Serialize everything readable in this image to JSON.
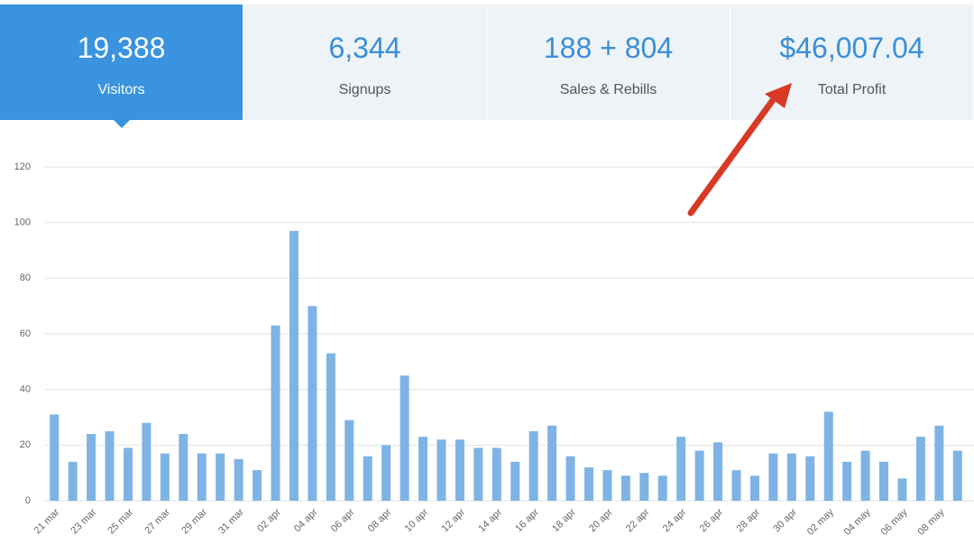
{
  "stats": [
    {
      "value": "19,388",
      "label": "Visitors"
    },
    {
      "value": "6,344",
      "label": "Signups"
    },
    {
      "value": "188 + 804",
      "label": "Sales & Rebills"
    },
    {
      "value": "$46,007.04",
      "label": "Total Profit"
    }
  ],
  "chart_data": {
    "type": "bar",
    "categories": [
      "21 mar",
      null,
      "23 mar",
      null,
      "25 mar",
      null,
      "27 mar",
      null,
      "29 mar",
      null,
      "31 mar",
      null,
      "02 apr",
      null,
      "04 apr",
      null,
      "06 apr",
      null,
      "08 apr",
      null,
      "10 apr",
      null,
      "12 apr",
      null,
      "14 apr",
      null,
      "16 apr",
      null,
      "18 apr",
      null,
      "20 apr",
      null,
      "22 apr",
      null,
      "24 apr",
      null,
      "26 apr",
      null,
      "28 apr",
      null,
      "30 apr",
      null,
      "02 may",
      null,
      "04 may",
      null,
      "06 may",
      null,
      "08 may",
      null
    ],
    "values": [
      31,
      14,
      24,
      25,
      19,
      28,
      17,
      24,
      17,
      17,
      15,
      11,
      63,
      97,
      70,
      53,
      29,
      16,
      20,
      45,
      23,
      22,
      22,
      19,
      19,
      14,
      25,
      27,
      16,
      12,
      11,
      9,
      10,
      9,
      23,
      18,
      21,
      11,
      9,
      17,
      17,
      16,
      32,
      14,
      18,
      14,
      8,
      23,
      27,
      18
    ],
    "color": "#7fb3e6",
    "ylim": [
      0,
      120
    ],
    "yticks": [
      0,
      20,
      40,
      60,
      80,
      100,
      120
    ],
    "grid": true
  }
}
